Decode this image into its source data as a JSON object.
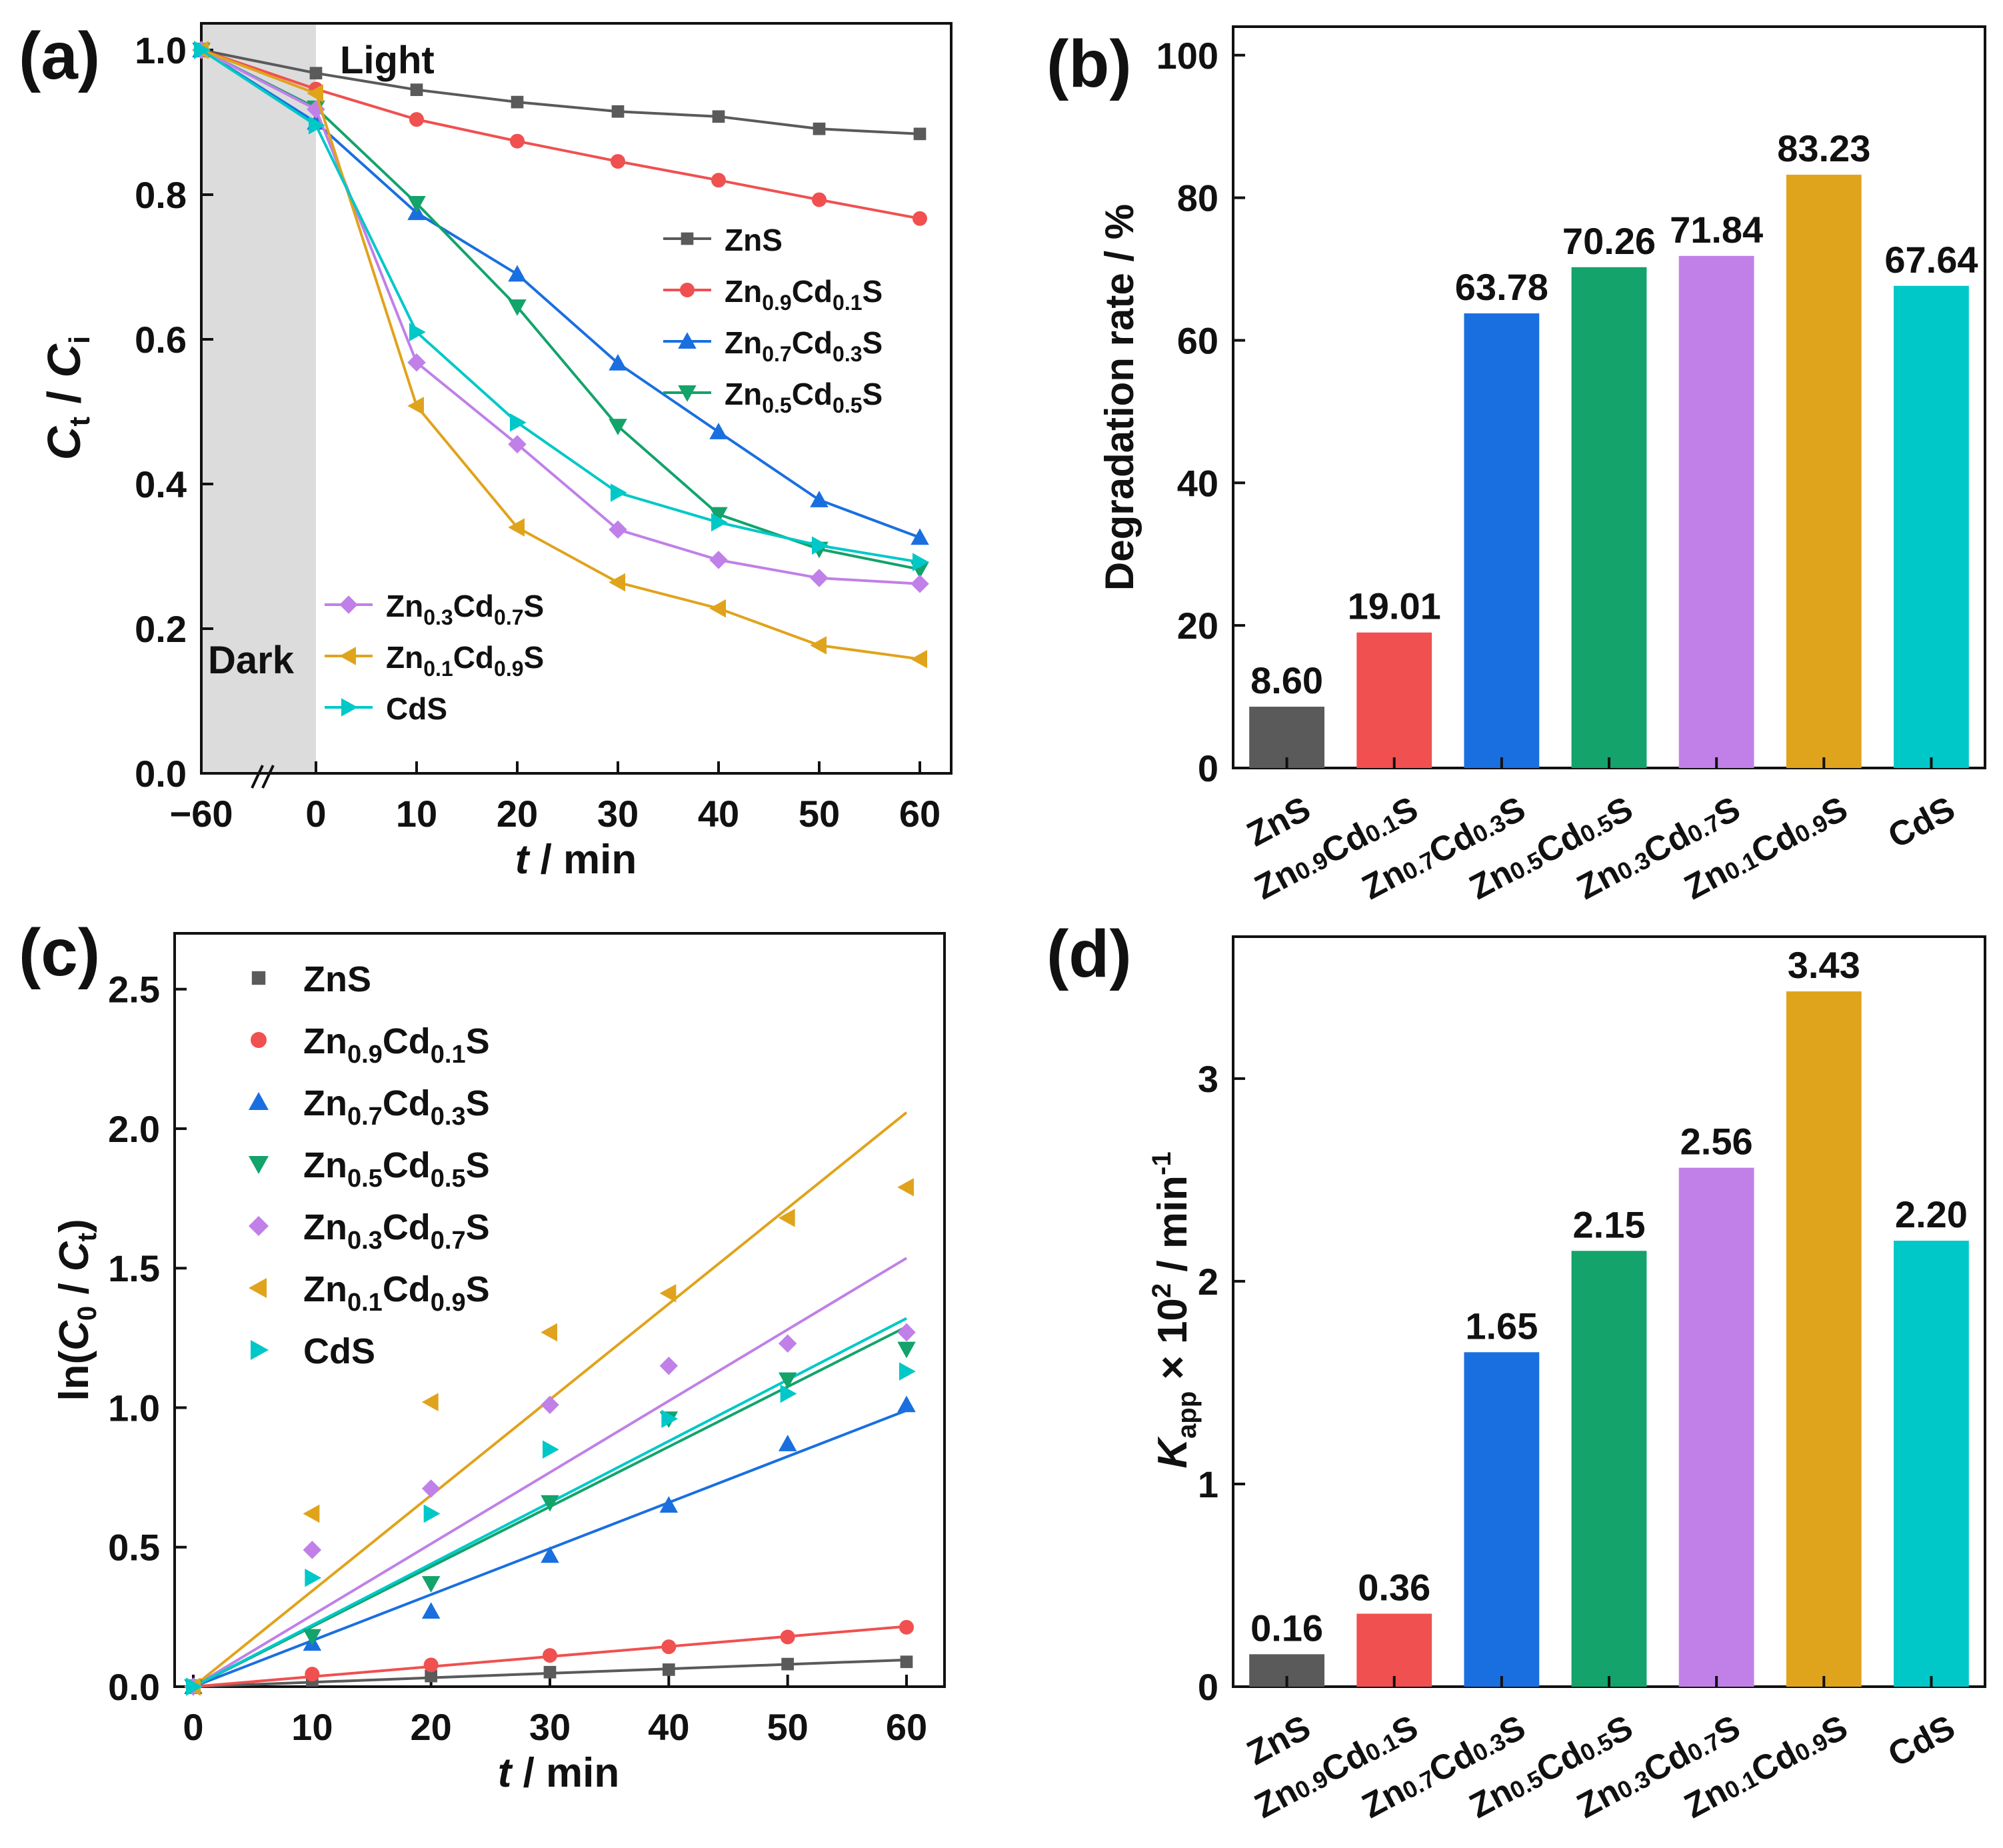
{
  "colors": {
    "ZnS": "#5a5a5a",
    "Zn0.9Cd0.1S": "#f05050",
    "Zn0.7Cd0.3S": "#1a6fe0",
    "Zn0.5Cd0.5S": "#13a36b",
    "Zn0.3Cd0.7S": "#c080e8",
    "Zn0.1Cd0.9S": "#e0a31c",
    "CdS": "#00c8c8"
  },
  "chart_data": [
    {
      "panel": "(a)",
      "type": "line",
      "xlabel": "t / min",
      "ylabel": "Ct / Ci",
      "ylim": [
        0,
        1.05
      ],
      "x_tick_labels": [
        "−60",
        "0",
        "10",
        "20",
        "30",
        "40",
        "50",
        "60"
      ],
      "y_tick_labels": [
        "0.0",
        "0.2",
        "0.4",
        "0.6",
        "0.8",
        "1.0"
      ],
      "annotations": [
        "Light",
        "Dark"
      ],
      "x": [
        -60,
        0,
        10,
        20,
        30,
        40,
        50,
        60
      ],
      "series": [
        {
          "name": "ZnS",
          "marker": "square",
          "values": [
            1.0,
            0.968,
            0.945,
            0.928,
            0.915,
            0.908,
            0.891,
            0.884
          ]
        },
        {
          "name": "Zn0.9Cd0.1S",
          "marker": "circle",
          "values": [
            1.0,
            0.946,
            0.904,
            0.874,
            0.846,
            0.82,
            0.793,
            0.767
          ]
        },
        {
          "name": "Zn0.7Cd0.3S",
          "marker": "tri-up",
          "values": [
            1.0,
            0.9,
            0.775,
            0.69,
            0.567,
            0.472,
            0.378,
            0.326
          ]
        },
        {
          "name": "Zn0.5Cd0.5S",
          "marker": "tri-down",
          "values": [
            1.0,
            0.92,
            0.788,
            0.645,
            0.48,
            0.358,
            0.31,
            0.282
          ]
        },
        {
          "name": "Zn0.3Cd0.7S",
          "marker": "diamond",
          "values": [
            1.0,
            0.918,
            0.568,
            0.455,
            0.337,
            0.295,
            0.27,
            0.262
          ]
        },
        {
          "name": "Zn0.1Cd0.9S",
          "marker": "tri-left",
          "values": [
            1.0,
            0.94,
            0.508,
            0.34,
            0.264,
            0.228,
            0.177,
            0.158
          ]
        },
        {
          "name": "CdS",
          "marker": "tri-right",
          "values": [
            1.0,
            0.896,
            0.61,
            0.485,
            0.388,
            0.347,
            0.315,
            0.292
          ]
        }
      ],
      "legend_upper": [
        {
          "pre": "ZnS"
        },
        {
          "pre": "Zn",
          "s1": "0.9",
          "mid": "Cd",
          "s2": "0.1",
          "post": "S"
        },
        {
          "pre": "Zn",
          "s1": "0.7",
          "mid": "Cd",
          "s2": "0.3",
          "post": "S"
        },
        {
          "pre": "Zn",
          "s1": "0.5",
          "mid": "Cd",
          "s2": "0.5",
          "post": "S"
        }
      ],
      "legend_lower": [
        {
          "pre": "Zn",
          "s1": "0.3",
          "mid": "Cd",
          "s2": "0.7",
          "post": "S"
        },
        {
          "pre": "Zn",
          "s1": "0.1",
          "mid": "Cd",
          "s2": "0.9",
          "post": "S"
        },
        {
          "pre": "CdS"
        }
      ]
    },
    {
      "panel": "(b)",
      "type": "bar",
      "ylabel": "Degradation rate / %",
      "ylim": [
        0,
        100
      ],
      "y_tick_labels": [
        "0",
        "20",
        "40",
        "60",
        "80",
        "100"
      ],
      "categories": [
        {
          "pre": "ZnS"
        },
        {
          "pre": "Zn",
          "s1": "0.9",
          "mid": "Cd",
          "s2": "0.1",
          "post": "S"
        },
        {
          "pre": "Zn",
          "s1": "0.7",
          "mid": "Cd",
          "s2": "0.3",
          "post": "S"
        },
        {
          "pre": "Zn",
          "s1": "0.5",
          "mid": "Cd",
          "s2": "0.5",
          "post": "S"
        },
        {
          "pre": "Zn",
          "s1": "0.3",
          "mid": "Cd",
          "s2": "0.7",
          "post": "S"
        },
        {
          "pre": "Zn",
          "s1": "0.1",
          "mid": "Cd",
          "s2": "0.9",
          "post": "S"
        },
        {
          "pre": "CdS"
        }
      ],
      "values": [
        8.6,
        19.01,
        63.78,
        70.26,
        71.84,
        83.23,
        67.64
      ],
      "value_labels": [
        "8.60",
        "19.01",
        "63.78",
        "70.26",
        "71.84",
        "83.23",
        "67.64"
      ]
    },
    {
      "panel": "(c)",
      "type": "scatter",
      "xlabel": "t / min",
      "ylabel": "ln(C0 / Ct)",
      "xlim": [
        -1.5,
        62
      ],
      "ylim": [
        0,
        2.7
      ],
      "x_tick_labels": [
        "0",
        "10",
        "20",
        "30",
        "40",
        "50",
        "60"
      ],
      "y_tick_labels": [
        "0.0",
        "0.5",
        "1.0",
        "1.5",
        "2.0",
        "2.5"
      ],
      "x": [
        0,
        10,
        20,
        30,
        40,
        50,
        60
      ],
      "series": [
        {
          "name": "ZnS",
          "marker": "square",
          "slope": 0.0016,
          "values": [
            0,
            0.023,
            0.038,
            0.052,
            0.061,
            0.081,
            0.089
          ]
        },
        {
          "name": "Zn0.9Cd0.1S",
          "marker": "circle",
          "slope": 0.0036,
          "values": [
            0,
            0.045,
            0.078,
            0.112,
            0.143,
            0.178,
            0.213
          ]
        },
        {
          "name": "Zn0.7Cd0.3S",
          "marker": "tri-up",
          "slope": 0.0165,
          "values": [
            0,
            0.155,
            0.27,
            0.47,
            0.65,
            0.87,
            1.01
          ]
        },
        {
          "name": "Zn0.5Cd0.5S",
          "marker": "tri-down",
          "slope": 0.0215,
          "values": [
            0,
            0.18,
            0.37,
            0.66,
            0.96,
            1.1,
            1.21
          ]
        },
        {
          "name": "Zn0.3Cd0.7S",
          "marker": "diamond",
          "slope": 0.0256,
          "values": [
            0,
            0.49,
            0.71,
            1.01,
            1.15,
            1.23,
            1.27
          ]
        },
        {
          "name": "Zn0.1Cd0.9S",
          "marker": "tri-left",
          "slope": 0.0343,
          "values": [
            0,
            0.62,
            1.02,
            1.27,
            1.41,
            1.68,
            1.79
          ]
        },
        {
          "name": "CdS",
          "marker": "tri-right",
          "slope": 0.022,
          "values": [
            0,
            0.39,
            0.62,
            0.85,
            0.96,
            1.05,
            1.13
          ]
        }
      ],
      "legend": [
        {
          "pre": "ZnS"
        },
        {
          "pre": "Zn",
          "s1": "0.9",
          "mid": "Cd",
          "s2": "0.1",
          "post": "S"
        },
        {
          "pre": "Zn",
          "s1": "0.7",
          "mid": "Cd",
          "s2": "0.3",
          "post": "S"
        },
        {
          "pre": "Zn",
          "s1": "0.5",
          "mid": "Cd",
          "s2": "0.5",
          "post": "S"
        },
        {
          "pre": "Zn",
          "s1": "0.3",
          "mid": "Cd",
          "s2": "0.7",
          "post": "S"
        },
        {
          "pre": "Zn",
          "s1": "0.1",
          "mid": "Cd",
          "s2": "0.9",
          "post": "S"
        },
        {
          "pre": "CdS"
        }
      ]
    },
    {
      "panel": "(d)",
      "type": "bar",
      "ylabel": "Kapp × 10² / min⁻¹",
      "ylim": [
        0,
        3.7
      ],
      "y_tick_labels": [
        "0",
        "1",
        "2",
        "3"
      ],
      "categories": [
        {
          "pre": "ZnS"
        },
        {
          "pre": "Zn",
          "s1": "0.9",
          "mid": "Cd",
          "s2": "0.1",
          "post": "S"
        },
        {
          "pre": "Zn",
          "s1": "0.7",
          "mid": "Cd",
          "s2": "0.3",
          "post": "S"
        },
        {
          "pre": "Zn",
          "s1": "0.5",
          "mid": "Cd",
          "s2": "0.5",
          "post": "S"
        },
        {
          "pre": "Zn",
          "s1": "0.3",
          "mid": "Cd",
          "s2": "0.7",
          "post": "S"
        },
        {
          "pre": "Zn",
          "s1": "0.1",
          "mid": "Cd",
          "s2": "0.9",
          "post": "S"
        },
        {
          "pre": "CdS"
        }
      ],
      "values": [
        0.16,
        0.36,
        1.65,
        2.15,
        2.56,
        3.43,
        2.2
      ],
      "value_labels": [
        "0.16",
        "0.36",
        "1.65",
        "2.15",
        "2.56",
        "3.43",
        "2.20"
      ]
    }
  ]
}
